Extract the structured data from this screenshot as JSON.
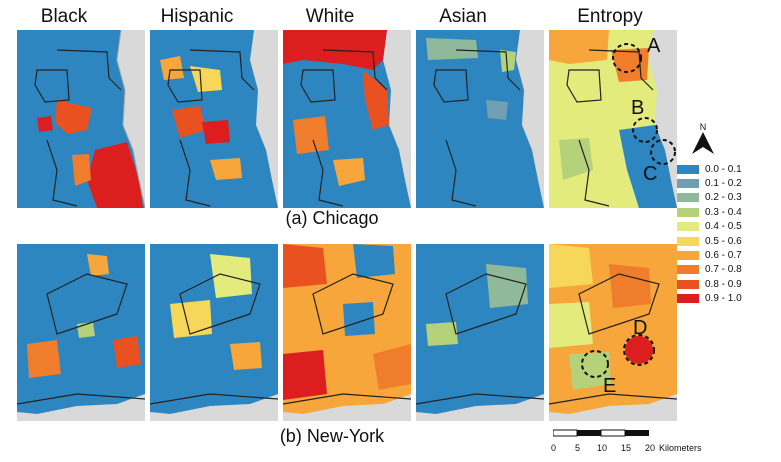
{
  "columns": [
    "Black",
    "Hispanic",
    "White",
    "Asian",
    "Entropy"
  ],
  "row_captions": {
    "chicago": "(a) Chicago",
    "newyork": "(b) New-York"
  },
  "annotations": [
    "A",
    "B",
    "C",
    "D",
    "E"
  ],
  "north_arrow": {
    "letter": "N",
    "icon": "north-arrow-icon"
  },
  "legend": {
    "items": [
      {
        "label": "0.0 - 0.1",
        "color": "#2e86c1"
      },
      {
        "label": "0.1 - 0.2",
        "color": "#6f9fb0"
      },
      {
        "label": "0.2 - 0.3",
        "color": "#8fb99a"
      },
      {
        "label": "0.3 - 0.4",
        "color": "#b5d27a"
      },
      {
        "label": "0.4 - 0.5",
        "color": "#e3eb7d"
      },
      {
        "label": "0.5 - 0.6",
        "color": "#f7d75a"
      },
      {
        "label": "0.6 - 0.7",
        "color": "#f6a63b"
      },
      {
        "label": "0.7 - 0.8",
        "color": "#f07d2b"
      },
      {
        "label": "0.8 - 0.9",
        "color": "#ea5120"
      },
      {
        "label": "0.9 - 1.0",
        "color": "#dc1e1e"
      }
    ]
  },
  "scale": {
    "ticks": [
      "0",
      "5",
      "10",
      "15",
      "20"
    ],
    "unit": "Kilometers"
  },
  "background_colors": {
    "land_gray": "#d9d9d9",
    "boundary": "#222222"
  }
}
